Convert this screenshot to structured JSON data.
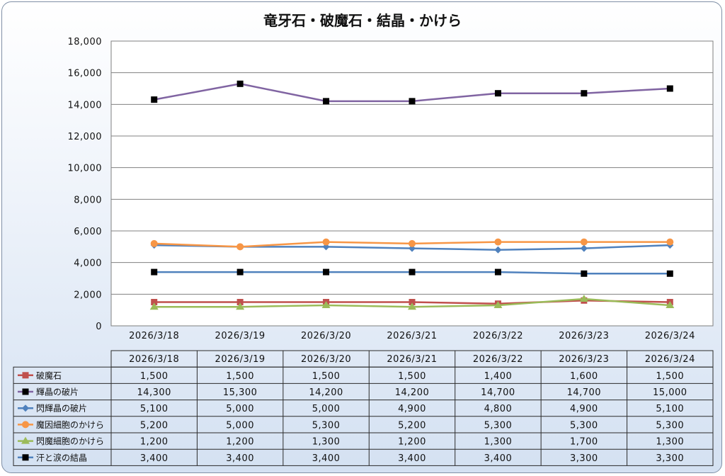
{
  "chart_data": {
    "type": "line",
    "title": "竜牙石・破魔石・結晶・かけら",
    "xlabel": "",
    "ylabel": "",
    "categories": [
      "2026/3/18",
      "2026/3/19",
      "2026/3/20",
      "2026/3/21",
      "2026/3/22",
      "2026/3/23",
      "2026/3/24"
    ],
    "ylim": [
      0,
      18000
    ],
    "yticks": [
      0,
      2000,
      4000,
      6000,
      8000,
      10000,
      12000,
      14000,
      16000,
      18000
    ],
    "ytick_labels": [
      "0",
      "2,000",
      "4,000",
      "6,000",
      "8,000",
      "10,000",
      "12,000",
      "14,000",
      "16,000",
      "18,000"
    ],
    "grid": true,
    "legend": "data-table",
    "series": [
      {
        "name": "破魔石",
        "values": [
          1500,
          1500,
          1500,
          1500,
          1400,
          1600,
          1500
        ],
        "labels": [
          "1,500",
          "1,500",
          "1,500",
          "1,500",
          "1,400",
          "1,600",
          "1,500"
        ],
        "color": "#c0504d",
        "marker": "square",
        "line_color": "#c0504d"
      },
      {
        "name": "輝晶の破片",
        "values": [
          14300,
          15300,
          14200,
          14200,
          14700,
          14700,
          15000
        ],
        "labels": [
          "14,300",
          "15,300",
          "14,200",
          "14,200",
          "14,700",
          "14,700",
          "15,000"
        ],
        "color": "#000000",
        "marker": "square",
        "line_color": "#8064a2"
      },
      {
        "name": "閃輝晶の破片",
        "values": [
          5100,
          5000,
          5000,
          4900,
          4800,
          4900,
          5100
        ],
        "labels": [
          "5,100",
          "5,000",
          "5,000",
          "4,900",
          "4,800",
          "4,900",
          "5,100"
        ],
        "color": "#4f81bd",
        "marker": "diamond",
        "line_color": "#4f81bd"
      },
      {
        "name": "魔因細胞のかけら",
        "values": [
          5200,
          5000,
          5300,
          5200,
          5300,
          5300,
          5300
        ],
        "labels": [
          "5,200",
          "5,000",
          "5,300",
          "5,200",
          "5,300",
          "5,300",
          "5,300"
        ],
        "color": "#f79646",
        "marker": "circle",
        "line_color": "#f79646"
      },
      {
        "name": "閃魔細胞のかけら",
        "values": [
          1200,
          1200,
          1300,
          1200,
          1300,
          1700,
          1300
        ],
        "labels": [
          "1,200",
          "1,200",
          "1,300",
          "1,200",
          "1,300",
          "1,700",
          "1,300"
        ],
        "color": "#9bbb59",
        "marker": "triangle",
        "line_color": "#9bbb59"
      },
      {
        "name": "汗と涙の結晶",
        "values": [
          3400,
          3400,
          3400,
          3400,
          3400,
          3300,
          3300
        ],
        "labels": [
          "3,400",
          "3,400",
          "3,400",
          "3,400",
          "3,400",
          "3,300",
          "3,300"
        ],
        "color": "#000000",
        "marker": "square",
        "line_color": "#4f81bd"
      }
    ]
  }
}
